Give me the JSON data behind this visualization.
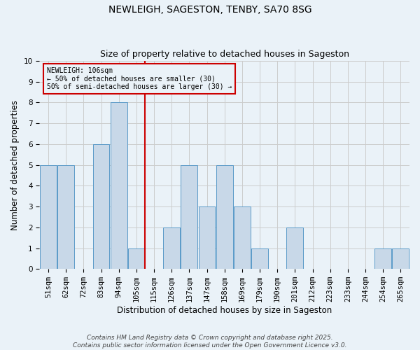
{
  "title": "NEWLEIGH, SAGESTON, TENBY, SA70 8SG",
  "subtitle": "Size of property relative to detached houses in Sageston",
  "xlabel": "Distribution of detached houses by size in Sageston",
  "ylabel": "Number of detached properties",
  "categories": [
    "51sqm",
    "62sqm",
    "72sqm",
    "83sqm",
    "94sqm",
    "105sqm",
    "115sqm",
    "126sqm",
    "137sqm",
    "147sqm",
    "158sqm",
    "169sqm",
    "179sqm",
    "190sqm",
    "201sqm",
    "212sqm",
    "223sqm",
    "233sqm",
    "244sqm",
    "254sqm",
    "265sqm"
  ],
  "values": [
    5,
    5,
    0,
    6,
    8,
    1,
    0,
    2,
    5,
    3,
    5,
    3,
    1,
    0,
    2,
    0,
    0,
    0,
    0,
    1,
    1
  ],
  "bar_color": "#c8d8e8",
  "bar_edge_color": "#5a9ac8",
  "vline_index": 5,
  "vline_color": "#cc0000",
  "vline_label_title": "NEWLEIGH: 106sqm",
  "vline_label_line1": "← 50% of detached houses are smaller (30)",
  "vline_label_line2": "50% of semi-detached houses are larger (30) →",
  "annotation_box_color": "#cc0000",
  "ylim": [
    0,
    10
  ],
  "yticks": [
    0,
    1,
    2,
    3,
    4,
    5,
    6,
    7,
    8,
    9,
    10
  ],
  "grid_color": "#cccccc",
  "background_color": "#eaf2f8",
  "footer": "Contains HM Land Registry data © Crown copyright and database right 2025.\nContains public sector information licensed under the Open Government Licence v3.0.",
  "title_fontsize": 10,
  "subtitle_fontsize": 9,
  "axis_label_fontsize": 8.5,
  "tick_fontsize": 7.5,
  "footer_fontsize": 6.5
}
